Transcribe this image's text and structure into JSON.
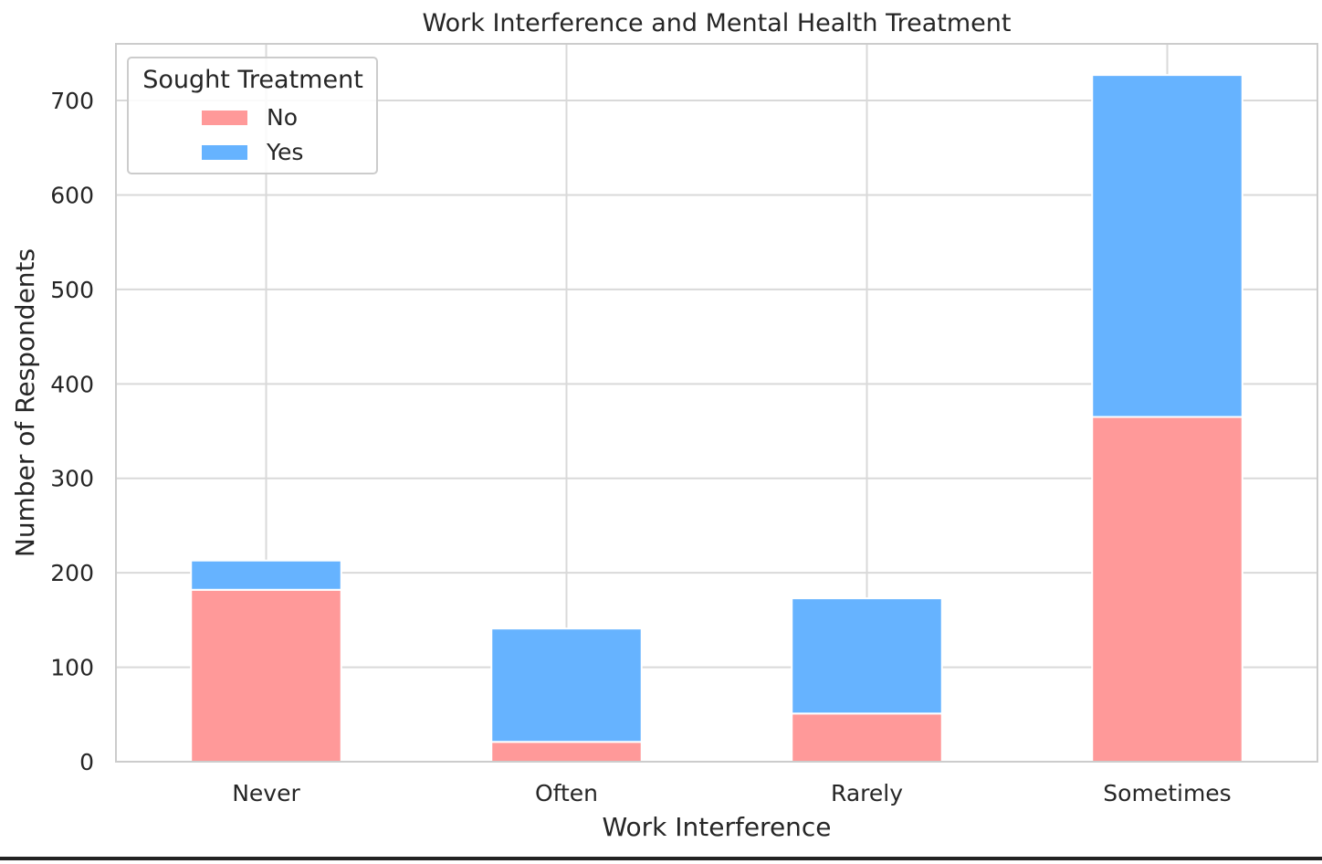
{
  "chart_data": {
    "type": "bar",
    "stacked": true,
    "title": "Work Interference and Mental Health Treatment",
    "xlabel": "Work Interference",
    "ylabel": "Number of Respondents",
    "categories": [
      "Never",
      "Often",
      "Rarely",
      "Sometimes"
    ],
    "series": [
      {
        "name": "No",
        "color": "#ff9999",
        "values": [
          182,
          21,
          51,
          365
        ]
      },
      {
        "name": "Yes",
        "color": "#66b3ff",
        "values": [
          31,
          120,
          122,
          362
        ]
      }
    ],
    "ylim": [
      0,
      760
    ],
    "yticks": [
      0,
      100,
      200,
      300,
      400,
      500,
      600,
      700
    ],
    "grid": true,
    "legend": {
      "title": "Sought Treatment",
      "position": "top-left"
    }
  }
}
